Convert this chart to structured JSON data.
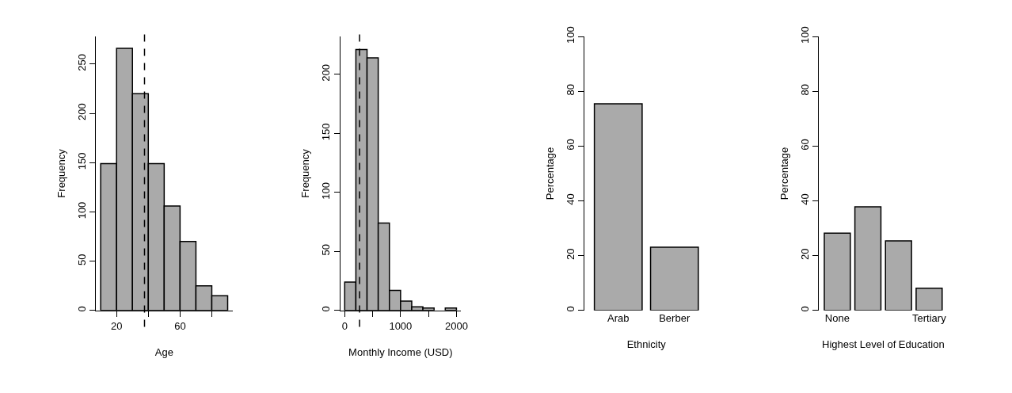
{
  "chart_data": [
    {
      "type": "histogram",
      "xlabel": "Age",
      "ylabel": "Frequency",
      "bins": [
        10,
        20,
        30,
        40,
        50,
        60,
        70,
        80,
        90
      ],
      "values": [
        149,
        266,
        220,
        149,
        106,
        70,
        25,
        15
      ],
      "color": "#aaaaaa",
      "xlim": [
        7,
        93
      ],
      "xticks": [
        20,
        {
          "value": 40,
          "label": null
        },
        60,
        {
          "value": 80,
          "label": null
        }
      ],
      "ylim": [
        0,
        278
      ],
      "yticks": [
        0,
        50,
        100,
        150,
        200,
        250
      ],
      "ref_lines": [
        {
          "axis": "x",
          "value": 37.6,
          "label": null,
          "line_style": "dashed",
          "color": "#000000"
        }
      ]
    },
    {
      "type": "histogram",
      "xlabel": "Monthly Income (USD)",
      "ylabel": "Frequency",
      "bins": [
        0,
        200,
        400,
        600,
        800,
        1000,
        1200,
        1400,
        1600,
        1800,
        2000
      ],
      "values": [
        24,
        221,
        214,
        74,
        17,
        8,
        3,
        2,
        0,
        2
      ],
      "color": "#aaaaaa",
      "xlim": [
        -80,
        2080
      ],
      "xticks": [
        0,
        {
          "value": 500,
          "label": null
        },
        1000,
        {
          "value": 1500,
          "label": null
        },
        2000
      ],
      "ylim": [
        0,
        232
      ],
      "yticks": [
        0,
        50,
        100,
        150,
        200
      ],
      "ref_lines": [
        {
          "axis": "x",
          "value": 266,
          "label": null,
          "line_style": "dashed",
          "color": "#000000"
        }
      ]
    },
    {
      "type": "bar",
      "xlabel": "Ethnicity",
      "ylabel": "Percentage",
      "categories": [
        "Arab",
        "Berber"
      ],
      "values": [
        75.4,
        23.1
      ],
      "color": "#aaaaaa",
      "ylim": [
        0,
        100
      ],
      "yticks": [
        0,
        20,
        40,
        60,
        80,
        100
      ]
    },
    {
      "type": "bar",
      "xlabel": "Highest Level of Education",
      "ylabel": "Percentage",
      "categories": [
        "None",
        null,
        null,
        "Tertiary"
      ],
      "values": [
        28.2,
        37.8,
        25.4,
        8.1
      ],
      "color": "#aaaaaa",
      "ylim": [
        0,
        100
      ],
      "yticks": [
        0,
        20,
        40,
        60,
        80,
        100
      ]
    }
  ]
}
